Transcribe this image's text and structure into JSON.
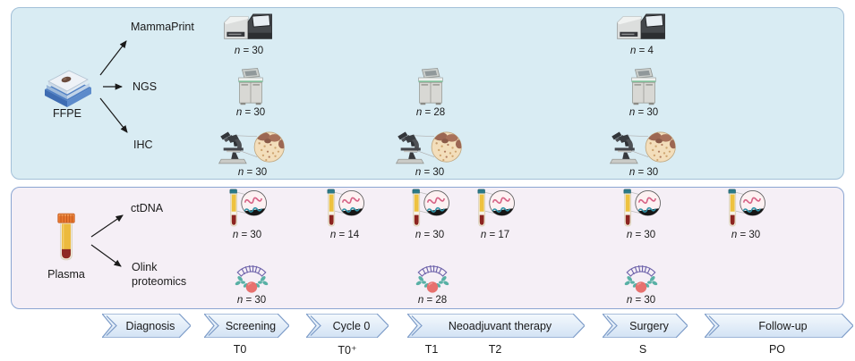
{
  "ffpe_panel": {
    "source_label": "FFPE",
    "assay_labels": {
      "mammaprint": "MammaPrint",
      "ngs": "NGS",
      "ihc": "IHC"
    },
    "counts": {
      "mammaprint": [
        "n = 30",
        "n = 4"
      ],
      "ngs": [
        "n = 30",
        "n = 28",
        "n = 30"
      ],
      "ihc": [
        "n = 30",
        "n = 30",
        "n = 30"
      ]
    }
  },
  "plasma_panel": {
    "source_label": "Plasma",
    "assay_labels": {
      "ctdna": "ctDNA",
      "olink": "Olink proteomics"
    },
    "counts": {
      "ctdna": [
        "n = 30",
        "n = 14",
        "n = 30",
        "n = 17",
        "n = 30",
        "n = 30"
      ],
      "olink": [
        "n = 30",
        "n = 28",
        "n = 30"
      ]
    }
  },
  "timeline": {
    "stages": [
      "Diagnosis",
      "Screening",
      "Cycle 0",
      "Neoadjuvant therapy",
      "Surgery",
      "Follow-up"
    ],
    "timepoints": [
      "T0",
      "T0⁺",
      "T1",
      "T2",
      "S",
      "PO"
    ]
  },
  "icons": {
    "ffpe_source": "ffpe-block-icon",
    "plasma_source": "plasma-tube-icon",
    "mammaprint_assay": "sequencer-icon",
    "ngs_assay": "benchtop-sequencer-icon",
    "ihc_assay": "microscope-histology-icon",
    "ctdna_assay": "blood-tube-magnifier-icon",
    "olink_assay": "antibody-protein-icon"
  },
  "colors": {
    "ffpe_panel_bg": "#d9ecf3",
    "ffpe_panel_border": "#a3c0d8",
    "plasma_panel_bg": "#f5eff6",
    "plasma_panel_border": "#8ba5d2",
    "stage_fill_top": "#f4f9fd",
    "stage_fill_bottom": "#d2e2f4",
    "stage_border": "#7d9cc8",
    "connector_color": "#1a1a1a"
  }
}
